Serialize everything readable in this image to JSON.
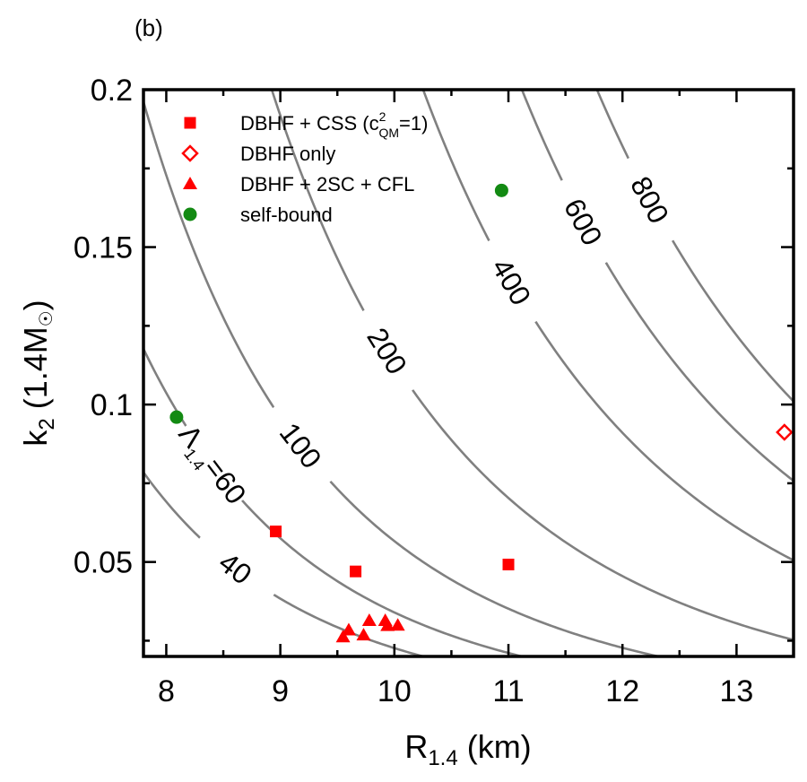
{
  "panel_label": "(b)",
  "colors": {
    "css": "#ff0000",
    "dbhf_only": "#ff0000",
    "triangles": "#ff0000",
    "self_bound": "#138a13",
    "contour": "#808080",
    "axis": "#000000"
  },
  "chart_data": {
    "type": "scatter",
    "xlabel_main": "R",
    "xlabel_sub": "1.4",
    "xlabel_unit": " (km)",
    "ylabel_main": "k",
    "ylabel_sub": "2",
    "ylabel_unit": " (1.4M",
    "ylabel_close": ")",
    "xlim": [
      7.8,
      13.5
    ],
    "ylim": [
      0.02,
      0.2
    ],
    "xticks": [
      8,
      9,
      10,
      11,
      12,
      13
    ],
    "xtick_labels": [
      "8",
      "9",
      "10",
      "11",
      "12",
      "13"
    ],
    "yticks": [
      0.05,
      0.1,
      0.15,
      0.2
    ],
    "ytick_labels": [
      "0.05",
      "0.1",
      "0.15",
      "0.2"
    ],
    "grid": false,
    "legend_position": "top-left",
    "series": [
      {
        "key": "css",
        "name": "DBHF + CSS (c",
        "name_sup": "2",
        "name_sub": "QM",
        "name_tail": "=1)",
        "marker": "square",
        "points": [
          [
            8.96,
            0.0597
          ],
          [
            9.66,
            0.047
          ],
          [
            11.0,
            0.0492
          ]
        ]
      },
      {
        "key": "dbhf_only",
        "name": "DBHF only",
        "marker": "diamond-open",
        "points": [
          [
            13.42,
            0.0912
          ]
        ]
      },
      {
        "key": "triangles",
        "name": "DBHF + 2SC + CFL",
        "marker": "triangle",
        "points": [
          [
            9.55,
            0.0262
          ],
          [
            9.6,
            0.0284
          ],
          [
            9.73,
            0.0268
          ],
          [
            9.78,
            0.0314
          ],
          [
            9.92,
            0.0314
          ],
          [
            9.94,
            0.0298
          ],
          [
            10.03,
            0.0299
          ]
        ]
      },
      {
        "key": "self_bound",
        "name": "self-bound",
        "marker": "circle",
        "points": [
          [
            8.09,
            0.096
          ],
          [
            10.94,
            0.168
          ]
        ]
      }
    ],
    "contours": [
      {
        "lambda": 40,
        "label": "40"
      },
      {
        "lambda": 60,
        "label": "=60",
        "prefix": "Λ",
        "prefix_sub": "1.4"
      },
      {
        "lambda": 100,
        "label": "100"
      },
      {
        "lambda": 200,
        "label": "200"
      },
      {
        "lambda": 400,
        "label": "400"
      },
      {
        "lambda": 600,
        "label": "600"
      },
      {
        "lambda": 800,
        "label": "800"
      }
    ],
    "relation": "k2 = (3/2) * Lambda * (G*M/(R*c^2))^5, M = 1.4 Msun"
  }
}
